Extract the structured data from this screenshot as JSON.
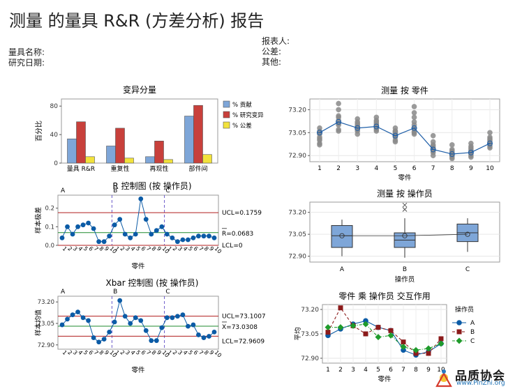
{
  "report": {
    "title": "测量 的量具 R&R (方差分析) 报告",
    "gauge_name_label": "量具名称:",
    "study_date_label": "研究日期:",
    "reporter_label": "报表人:",
    "tolerance_label": "公差:",
    "other_label": "其他:"
  },
  "chart_data": [
    {
      "id": "variation",
      "type": "bar",
      "title": "变异分量",
      "ylabel": "百分比",
      "ylim": [
        0,
        90
      ],
      "yticks": [
        0,
        40,
        80
      ],
      "categories": [
        "量具 R&R",
        "重复性",
        "再现性",
        "部件间"
      ],
      "series": [
        {
          "name": "% 贡献",
          "color": "#7ea6d8",
          "values": [
            34,
            24,
            9,
            66
          ]
        },
        {
          "name": "% 研究变异",
          "color": "#c8403b",
          "values": [
            58,
            49,
            31,
            81
          ]
        },
        {
          "name": "% 公差",
          "color": "#f2e23c",
          "values": [
            9,
            7,
            5,
            12
          ]
        }
      ]
    },
    {
      "id": "by-part",
      "type": "scatter",
      "title": "测量 按 零件",
      "xlabel": "零件",
      "ylim": [
        72.86,
        73.27
      ],
      "yticks": [
        72.9,
        73.05,
        73.2
      ],
      "ytick_labels": [
        "72.90",
        "73.05",
        "73.20"
      ],
      "x": [
        1,
        2,
        3,
        4,
        5,
        6,
        7,
        8,
        9,
        10
      ],
      "points": [
        [
          73.04,
          73.0,
          72.98,
          72.97,
          73.02,
          73.06,
          73.08,
          73.05,
          73.01
        ],
        [
          73.1,
          73.13,
          73.2,
          73.11,
          73.16,
          73.15,
          73.24,
          73.06,
          73.07
        ],
        [
          73.06,
          73.1,
          73.08,
          73.12,
          73.04,
          73.09,
          73.11,
          73.07,
          73.14
        ],
        [
          73.07,
          73.1,
          73.13,
          73.06,
          73.09,
          73.12,
          73.15,
          73.08,
          73.11
        ],
        [
          73.02,
          73.06,
          73.03,
          73.0,
          73.05,
          73.08,
          72.99,
          73.04,
          73.06
        ],
        [
          73.04,
          73.12,
          73.08,
          73.1,
          73.15,
          73.22,
          73.06,
          73.18,
          73.05
        ],
        [
          72.9,
          72.93,
          72.96,
          72.99,
          73.03,
          72.95,
          72.92,
          72.97,
          72.94
        ],
        [
          72.88,
          72.9,
          72.92,
          72.94,
          72.97,
          72.91,
          72.89,
          72.93,
          72.9
        ],
        [
          72.89,
          72.92,
          72.95,
          72.98,
          72.91,
          72.93,
          72.96,
          72.9,
          72.94
        ],
        [
          72.95,
          72.97,
          72.99,
          73.05,
          73.01,
          72.98,
          73.02,
          72.96,
          73.0
        ]
      ],
      "means": [
        73.05,
        73.12,
        73.08,
        73.09,
        73.03,
        73.08,
        72.94,
        72.91,
        72.92,
        72.98
      ]
    },
    {
      "id": "r-chart",
      "type": "line",
      "title": "R 控制图 (按 操作员)",
      "ylabel": "样本极差",
      "xlabel": "零件",
      "ylim": [
        0,
        0.27
      ],
      "yticks": [
        0.0,
        0.1,
        0.2
      ],
      "ytick_labels": [
        "0.0",
        "0.1",
        "0.2"
      ],
      "operators": [
        "A",
        "B",
        "C"
      ],
      "tick_labels": [
        "1",
        "2",
        "3",
        "4",
        "5",
        "6",
        "7",
        "8",
        "9",
        "10",
        "1",
        "2",
        "3",
        "4",
        "5",
        "6",
        "7",
        "8",
        "9",
        "10",
        "1",
        "2",
        "3",
        "4",
        "5",
        "6",
        "7",
        "8",
        "9",
        "10"
      ],
      "values": [
        0.04,
        0.1,
        0.06,
        0.1,
        0.11,
        0.12,
        0.09,
        0.02,
        0.02,
        0.05,
        0.11,
        0.14,
        0.06,
        0.04,
        0.06,
        0.25,
        0.14,
        0.06,
        0.08,
        0.1,
        0.06,
        0.04,
        0.02,
        0.03,
        0.03,
        0.04,
        0.05,
        0.05,
        0.05,
        0.04
      ],
      "ucl": 0.1759,
      "center": 0.0683,
      "lcl": 0,
      "ucl_label": "UCL=0.1759",
      "center_label": "R=0.0683",
      "lcl_label": "LCL=0"
    },
    {
      "id": "by-operator",
      "type": "box",
      "title": "测量 按 操作员",
      "xlabel": "操作员",
      "ylim": [
        72.86,
        73.27
      ],
      "yticks": [
        72.9,
        73.05,
        73.2
      ],
      "ytick_labels": [
        "72.90",
        "73.05",
        "73.20"
      ],
      "categories": [
        "A",
        "B",
        "C"
      ],
      "boxes": [
        {
          "q1": 72.96,
          "median": 73.04,
          "q3": 73.11,
          "whisker_low": 72.9,
          "whisker_high": 73.15,
          "mean": 73.04
        },
        {
          "q1": 72.96,
          "median": 73.01,
          "q3": 73.06,
          "whisker_low": 72.89,
          "whisker_high": 73.16,
          "mean": 73.04,
          "outliers": [
            73.22,
            73.25
          ]
        },
        {
          "q1": 73.0,
          "median": 73.06,
          "q3": 73.12,
          "whisker_low": 72.93,
          "whisker_high": 73.16,
          "mean": 73.05
        }
      ]
    },
    {
      "id": "xbar-chart",
      "type": "line",
      "title": "Xbar 控制图 (按 操作员)",
      "ylabel": "样本均值",
      "xlabel": "零件",
      "ylim": [
        72.87,
        73.24
      ],
      "yticks": [
        72.9,
        73.05,
        73.2
      ],
      "ytick_labels": [
        "72.90",
        "73.05",
        "73.20"
      ],
      "operators": [
        "A",
        "B",
        "C"
      ],
      "tick_labels": [
        "1",
        "2",
        "3",
        "4",
        "5",
        "6",
        "7",
        "8",
        "9",
        "10",
        "1",
        "2",
        "3",
        "4",
        "5",
        "6",
        "7",
        "8",
        "9",
        "10",
        "1",
        "2",
        "3",
        "4",
        "5",
        "6",
        "7",
        "8",
        "9",
        "10"
      ],
      "values": [
        73.04,
        73.08,
        73.11,
        73.13,
        73.09,
        73.07,
        72.95,
        72.92,
        72.94,
        72.99,
        73.06,
        73.21,
        73.1,
        73.05,
        73.09,
        73.07,
        73.0,
        72.93,
        72.93,
        73.02,
        73.09,
        73.09,
        73.1,
        73.11,
        73.03,
        73.04,
        72.97,
        72.95,
        72.96,
        72.99
      ],
      "ucl": 73.1007,
      "center": 73.0308,
      "lcl": 72.9609,
      "ucl_label": "UCL=73.1007",
      "center_label": "X=73.0308",
      "lcl_label": "LCL=72.9609"
    },
    {
      "id": "interaction",
      "type": "line",
      "title": "零件 乘 操作员 交互作用",
      "ylabel": "平均",
      "xlabel": "零件",
      "legend_title": "操作员",
      "ylim": [
        72.87,
        73.23
      ],
      "yticks": [
        72.9,
        73.05,
        73.2
      ],
      "ytick_labels": [
        "72.90",
        "73.05",
        "73.20"
      ],
      "x": [
        1,
        2,
        3,
        4,
        5,
        6,
        7,
        8,
        9,
        10
      ],
      "series": [
        {
          "name": "A",
          "color": "#0b5ba6",
          "marker": "circle",
          "dash": "none",
          "values": [
            73.04,
            73.08,
            73.11,
            73.13,
            73.09,
            73.07,
            72.95,
            72.92,
            72.94,
            72.99
          ]
        },
        {
          "name": "B",
          "color": "#8b1a1a",
          "marker": "square",
          "dash": "4,3",
          "values": [
            73.06,
            73.21,
            73.1,
            73.05,
            73.09,
            73.07,
            73.0,
            72.93,
            72.93,
            73.02
          ]
        },
        {
          "name": "C",
          "color": "#1f9b2b",
          "marker": "diamond",
          "dash": "4,2,1,2",
          "values": [
            73.09,
            73.09,
            73.1,
            73.11,
            73.03,
            73.04,
            72.97,
            72.95,
            72.96,
            72.99
          ]
        }
      ]
    }
  ],
  "watermark": {
    "title": "品质协会",
    "url": "www.PinZhi.org"
  }
}
